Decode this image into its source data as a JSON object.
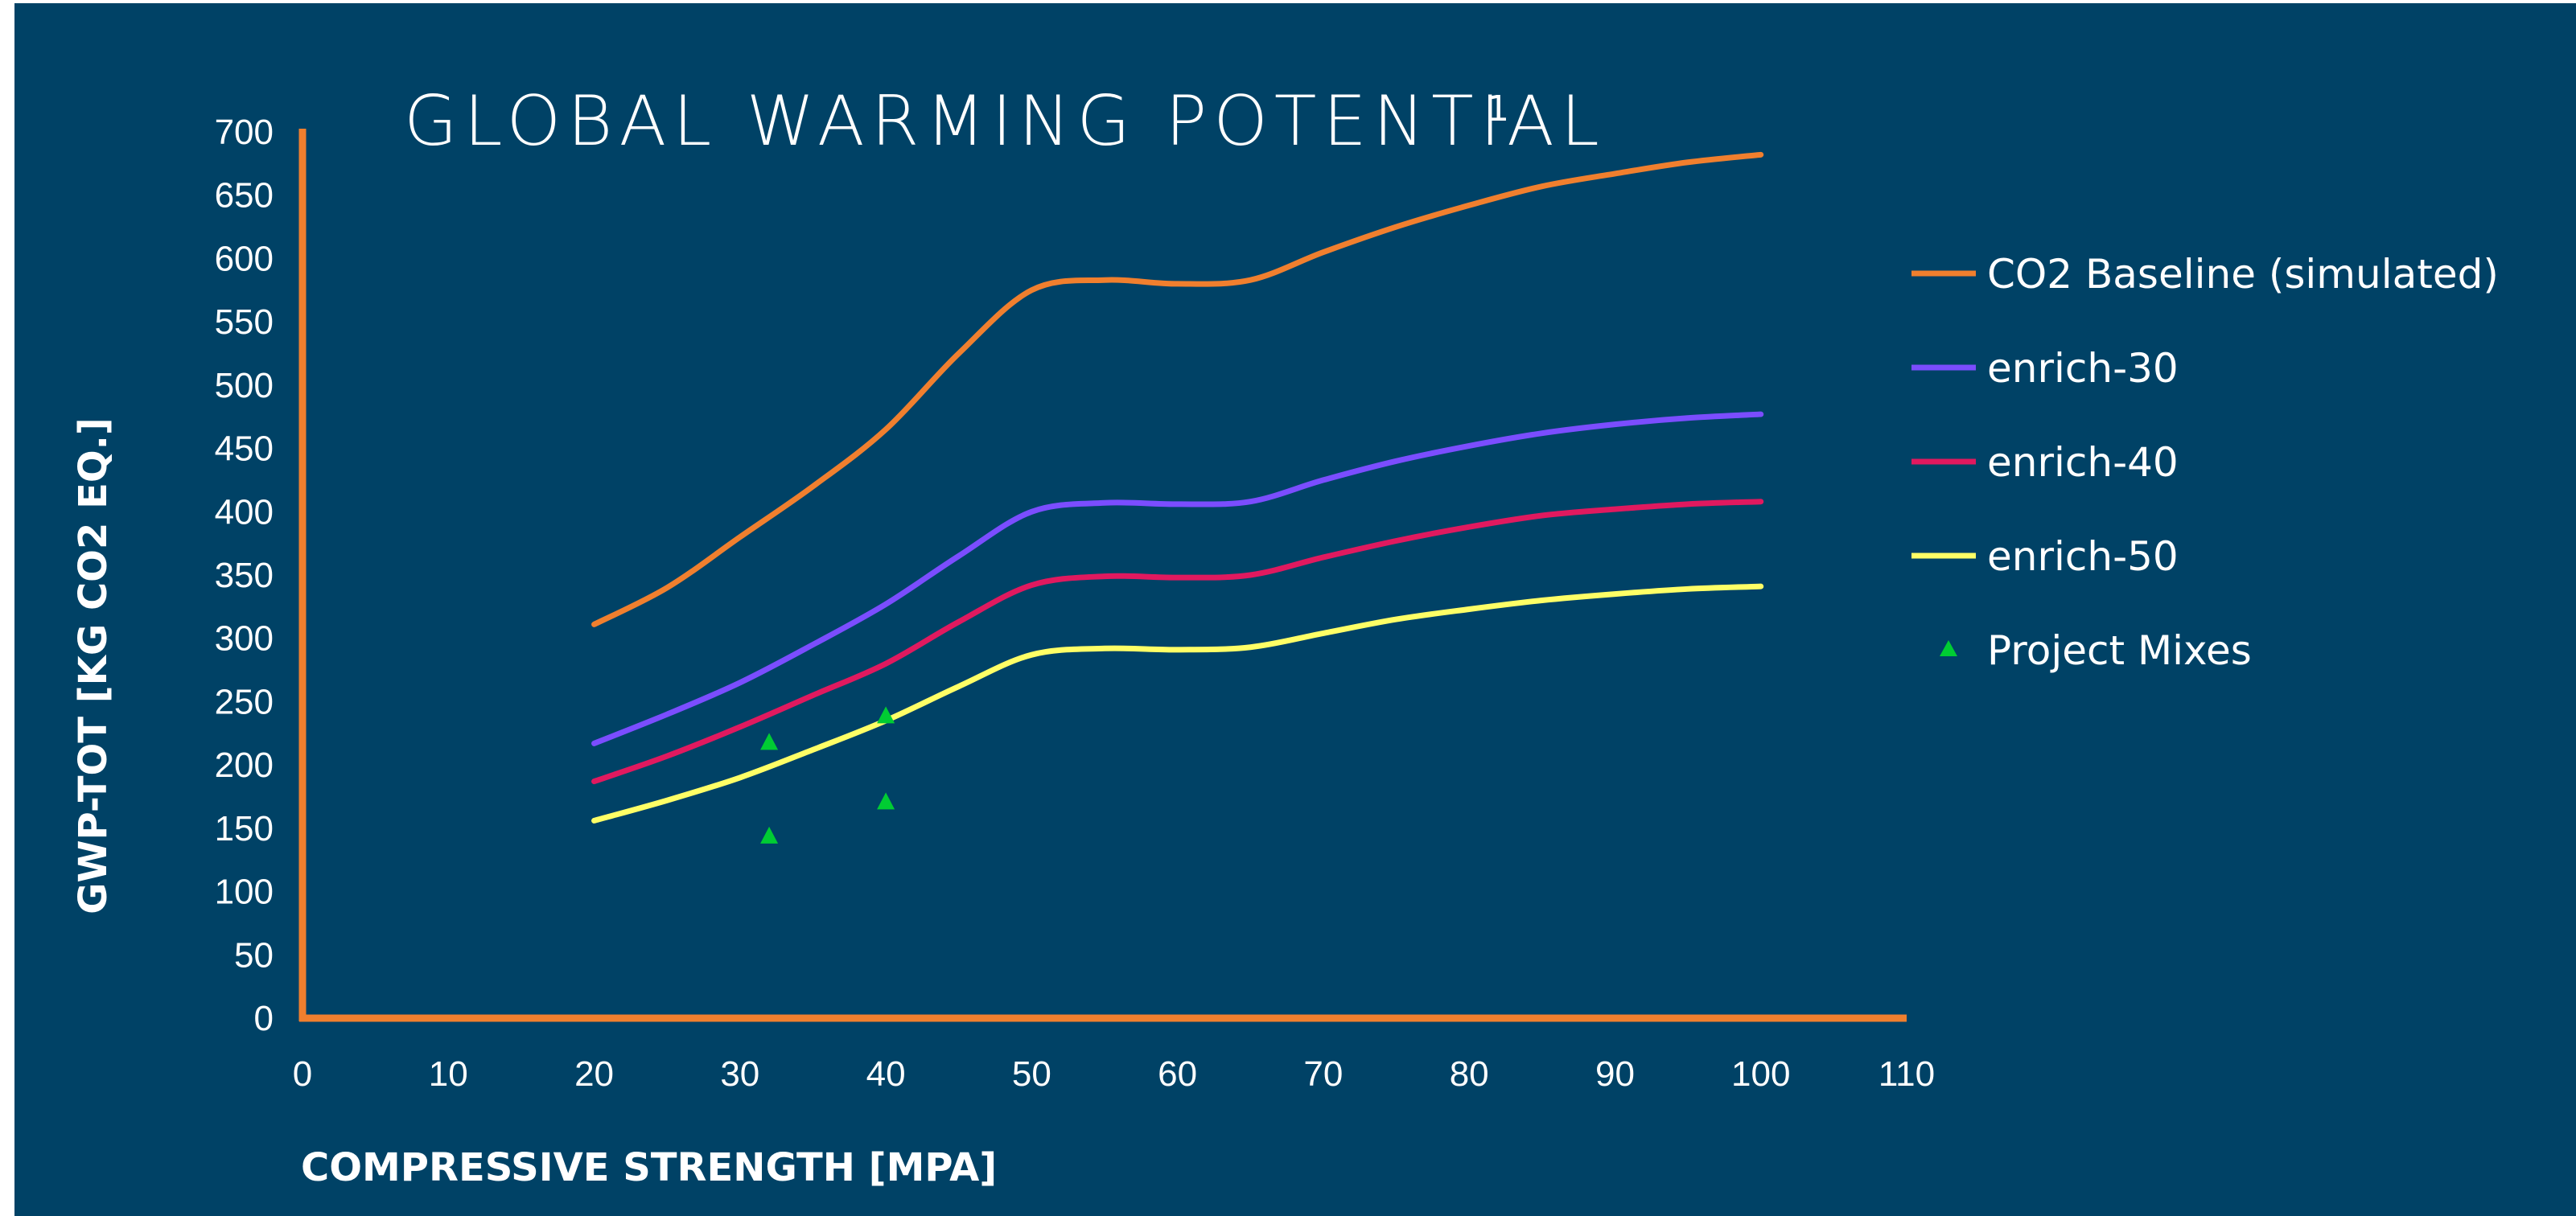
{
  "chart_data": {
    "type": "line",
    "title": "GLOBAL WARMING POTENTIAL",
    "title_superscript": "1",
    "xlabel": "COMPRESSIVE STRENGTH [MPA]",
    "ylabel": "GWP-TOT [KG CO2 EQ.]",
    "xlim": [
      0,
      110
    ],
    "ylim": [
      0,
      700
    ],
    "x_ticks": [
      "0",
      "10",
      "20",
      "30",
      "40",
      "50",
      "60",
      "70",
      "80",
      "90",
      "100",
      "110"
    ],
    "y_ticks": [
      "0",
      "50",
      "100",
      "150",
      "200",
      "250",
      "300",
      "350",
      "400",
      "450",
      "500",
      "550",
      "600",
      "650",
      "700"
    ],
    "grid": false,
    "legend_position": "right",
    "background_color": "#004266",
    "axis_color": "#F07F2E",
    "series": [
      {
        "name": "CO2 Baseline (simulated)",
        "color": "#F07F2E",
        "x": [
          20,
          25,
          30,
          35,
          40,
          45,
          50,
          55,
          60,
          65,
          70,
          75,
          80,
          85,
          90,
          95,
          100
        ],
        "y": [
          311,
          340,
          380,
          420,
          465,
          525,
          575,
          583,
          580,
          583,
          605,
          625,
          642,
          657,
          667,
          676,
          682
        ]
      },
      {
        "name": "enrich-30",
        "color": "#7B4DFF",
        "x": [
          20,
          25,
          30,
          35,
          40,
          45,
          50,
          55,
          60,
          65,
          70,
          75,
          80,
          85,
          90,
          95,
          100
        ],
        "y": [
          217,
          240,
          265,
          295,
          327,
          365,
          400,
          407,
          406,
          408,
          425,
          440,
          452,
          462,
          469,
          474,
          477
        ]
      },
      {
        "name": "enrich-40",
        "color": "#E0195F",
        "x": [
          20,
          25,
          30,
          35,
          40,
          45,
          50,
          55,
          60,
          65,
          70,
          75,
          80,
          85,
          90,
          95,
          100
        ],
        "y": [
          187,
          207,
          230,
          255,
          280,
          313,
          342,
          349,
          348,
          350,
          364,
          377,
          388,
          397,
          402,
          406,
          408
        ]
      },
      {
        "name": "enrich-50",
        "color": "#FFFF66",
        "x": [
          20,
          25,
          30,
          35,
          40,
          45,
          50,
          55,
          60,
          65,
          70,
          75,
          80,
          85,
          90,
          95,
          100
        ],
        "y": [
          156,
          172,
          190,
          212,
          235,
          262,
          287,
          292,
          291,
          293,
          304,
          315,
          323,
          330,
          335,
          339,
          341
        ]
      },
      {
        "name": "Project Mixes",
        "color": "#00CC33",
        "marker": "triangle",
        "x": [
          32,
          32,
          40,
          40
        ],
        "y": [
          143,
          217,
          170,
          238
        ]
      }
    ]
  }
}
